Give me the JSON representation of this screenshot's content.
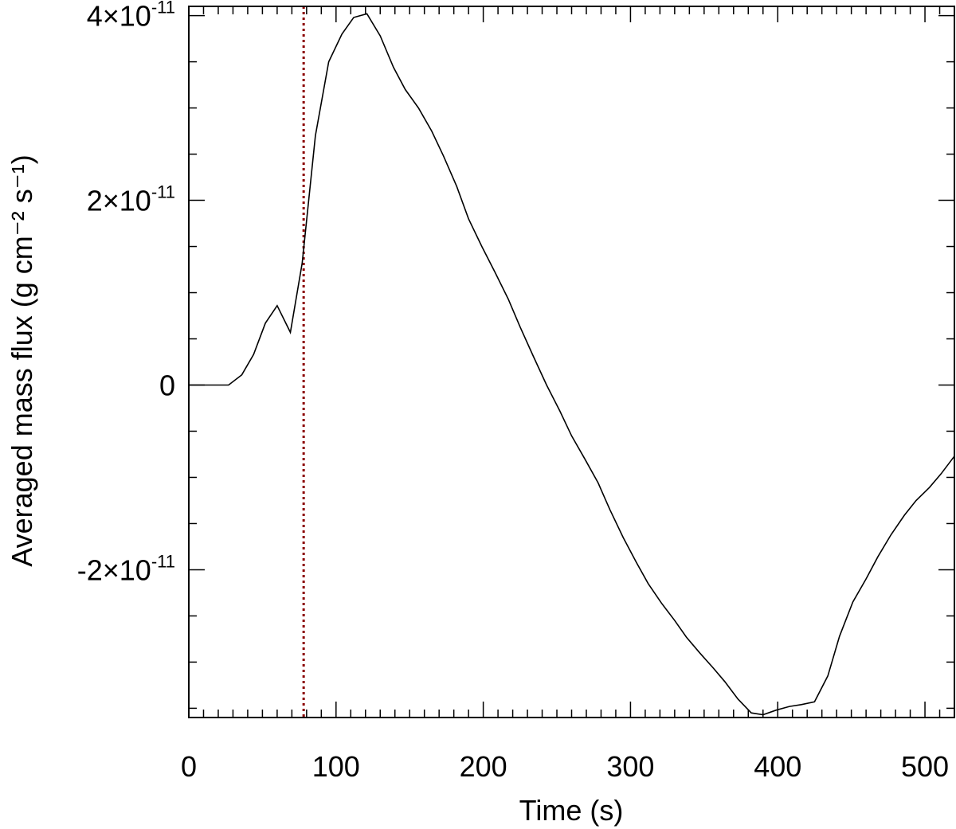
{
  "chart_data": {
    "type": "line",
    "xlabel": "Time (s)",
    "ylabel": "Averaged mass flux (g cm⁻² s⁻¹)",
    "xlim": [
      0,
      520
    ],
    "ylim": [
      -3.6e-11,
      4.1e-11
    ],
    "x_ticks": [
      {
        "value": 0,
        "label": "0"
      },
      {
        "value": 100,
        "label": "100"
      },
      {
        "value": 200,
        "label": "200"
      },
      {
        "value": 300,
        "label": "300"
      },
      {
        "value": 400,
        "label": "400"
      },
      {
        "value": 500,
        "label": "500"
      }
    ],
    "y_ticks": [
      {
        "value": -2e-11,
        "mantissa": "-2×10",
        "exponent": "-11"
      },
      {
        "value": 0,
        "mantissa": "0",
        "exponent": ""
      },
      {
        "value": 2e-11,
        "mantissa": "2×10",
        "exponent": "-11"
      },
      {
        "value": 4e-11,
        "mantissa": "4×10",
        "exponent": "-11"
      }
    ],
    "series": [
      {
        "color": "#000000",
        "x": [
          0,
          27,
          36,
          44,
          52,
          60,
          69,
          77,
          86,
          95,
          104,
          112,
          121,
          130,
          139,
          147,
          156,
          165,
          173,
          182,
          190,
          199,
          208,
          217,
          225,
          234,
          243,
          252,
          260,
          269,
          278,
          286,
          295,
          304,
          312,
          321,
          330,
          338,
          347,
          356,
          364,
          373,
          382,
          390,
          399,
          408,
          416,
          425,
          434,
          442,
          451,
          460,
          468,
          477,
          486,
          494,
          503,
          511,
          520
        ],
        "y": [
          0,
          0,
          1.1e-12,
          3.3e-12,
          6.7e-12,
          8.6e-12,
          5.7e-12,
          1.32e-11,
          2.7e-11,
          3.5e-11,
          3.8e-11,
          3.98e-11,
          4.02e-11,
          3.78e-11,
          3.44e-11,
          3.2e-11,
          3e-11,
          2.75e-11,
          2.48e-11,
          2.15e-11,
          1.8e-11,
          1.5e-11,
          1.22e-11,
          9.3e-12,
          6.3e-12,
          3.1e-12,
          0,
          -2.8e-12,
          -5.5e-12,
          -8e-12,
          -1.06e-11,
          -1.35e-11,
          -1.65e-11,
          -1.92e-11,
          -2.15e-11,
          -2.36e-11,
          -2.55e-11,
          -2.73e-11,
          -2.9e-11,
          -3.06e-11,
          -3.21e-11,
          -3.4e-11,
          -3.55e-11,
          -3.57e-11,
          -3.52e-11,
          -3.48e-11,
          -3.46e-11,
          -3.43e-11,
          -3.15e-11,
          -2.72e-11,
          -2.35e-11,
          -2.1e-11,
          -1.86e-11,
          -1.62e-11,
          -1.41e-11,
          -1.25e-11,
          -1.11e-11,
          -9.6e-12,
          -7.7e-12
        ]
      }
    ],
    "vline": {
      "x": 78,
      "color": "#8b0000",
      "style": "dotted"
    }
  }
}
